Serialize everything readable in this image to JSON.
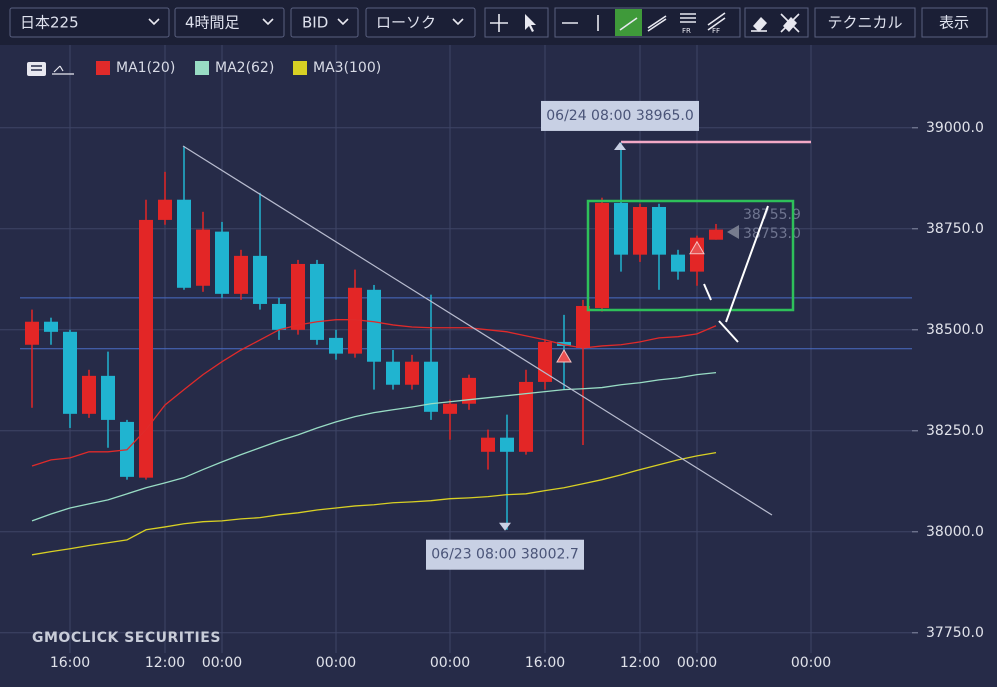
{
  "toolbar": {
    "symbol": "日本225",
    "timeframe": "4時間足",
    "price_type": "BID",
    "chart_style": "ローソク",
    "buttons": [
      "テクニカル",
      "表示"
    ]
  },
  "chart_data": {
    "type": "candlestick",
    "watermark": "GMOCLICK SECURITIES",
    "categories": [
      null,
      null,
      "16:00",
      null,
      null,
      null,
      null,
      "12:00",
      null,
      null,
      "00:00",
      null,
      null,
      null,
      null,
      null,
      "00:00",
      null,
      null,
      null,
      null,
      null,
      "00:00",
      null,
      null,
      null,
      null,
      "16:00",
      null,
      null,
      null,
      null,
      "12:00",
      null,
      null,
      "00:00",
      null,
      null,
      null,
      null,
      null,
      "00:00"
    ],
    "open": [
      38463,
      38520,
      38495,
      38292,
      38386,
      38272,
      38134,
      38772,
      38822,
      38609,
      38743,
      38589,
      38683,
      38564,
      38500,
      38663,
      38480,
      38441,
      38599,
      38421,
      38364,
      38421,
      38292,
      38317,
      38198,
      38233,
      38198,
      38371,
      38470,
      38455,
      38554,
      38814,
      38686,
      38804,
      38686,
      38644,
      38723,
      null,
      null,
      null,
      null,
      null
    ],
    "high": [
      38550,
      38530,
      38500,
      38401,
      38446,
      38277,
      38822,
      38891,
      38955,
      38792,
      38767,
      38698,
      38839,
      38579,
      38673,
      38673,
      38500,
      38649,
      38611,
      38450,
      38438,
      38587,
      38327,
      38389,
      38253,
      38290,
      38401,
      38475,
      38537,
      38574,
      38827,
      38963,
      38812,
      38812,
      38698,
      38733,
      38762,
      null,
      null,
      null,
      null,
      null
    ],
    "low": [
      38307,
      38463,
      38257,
      38282,
      38208,
      38129,
      38129,
      38760,
      38599,
      38594,
      38579,
      38574,
      38550,
      38475,
      38488,
      38463,
      38426,
      38431,
      38352,
      38352,
      38352,
      38277,
      38228,
      38302,
      38154,
      38005,
      38191,
      38352,
      38352,
      38215,
      38545,
      38644,
      38668,
      38599,
      38624,
      38609,
      38723,
      null,
      null,
      null,
      null,
      null
    ],
    "close": [
      38520,
      38495,
      38292,
      38386,
      38277,
      38136,
      38772,
      38822,
      38604,
      38748,
      38589,
      38683,
      38564,
      38500,
      38663,
      38475,
      38441,
      38604,
      38421,
      38364,
      38421,
      38297,
      38317,
      38381,
      38233,
      38198,
      38371,
      38470,
      38460,
      38559,
      38814,
      38686,
      38804,
      38686,
      38644,
      38728,
      38748,
      null,
      null,
      null,
      null,
      null
    ],
    "up_color": "#e32626",
    "down_color": "#20b4d0",
    "series": [
      {
        "name": "MA1(20)",
        "color": "#e02a2a",
        "values": [
          38163,
          38178,
          38183,
          38198,
          38198,
          38203,
          38253,
          38314,
          38352,
          38389,
          38421,
          38450,
          38475,
          38500,
          38512,
          38520,
          38525,
          38525,
          38520,
          38512,
          38507,
          38505,
          38505,
          38505,
          38500,
          38495,
          38485,
          38475,
          38463,
          38455,
          38460,
          38463,
          38470,
          38480,
          38483,
          38490,
          38510,
          null,
          null,
          null,
          null,
          null
        ]
      },
      {
        "name": "MA2(62)",
        "color": "#98dcc4",
        "values": [
          38027,
          38044,
          38059,
          38069,
          38079,
          38094,
          38109,
          38121,
          38134,
          38154,
          38173,
          38191,
          38208,
          38225,
          38240,
          38257,
          38272,
          38285,
          38295,
          38302,
          38309,
          38317,
          38322,
          38327,
          38332,
          38337,
          38342,
          38347,
          38352,
          38354,
          38357,
          38364,
          38369,
          38376,
          38381,
          38389,
          38394,
          null,
          null,
          null,
          null,
          null
        ]
      },
      {
        "name": "MA3(100)",
        "color": "#d8d024",
        "values": [
          37943,
          37951,
          37958,
          37966,
          37973,
          37980,
          38005,
          38012,
          38020,
          38025,
          38027,
          38032,
          38035,
          38042,
          38047,
          38054,
          38059,
          38064,
          38067,
          38072,
          38074,
          38077,
          38082,
          38084,
          38087,
          38092,
          38094,
          38102,
          38109,
          38119,
          38129,
          38141,
          38154,
          38166,
          38178,
          38188,
          38196,
          null,
          null,
          null,
          null,
          null
        ]
      }
    ],
    "ylim": [
      37700,
      39200
    ],
    "yticks": [
      {
        "value": 37750,
        "label": "37750.0"
      },
      {
        "value": 38000,
        "label": "38000.0"
      },
      {
        "value": 38250,
        "label": "38250.0"
      },
      {
        "value": 38500,
        "label": "38500.0"
      },
      {
        "value": 38750,
        "label": "38750.0"
      },
      {
        "value": 39000,
        "label": "39000.0"
      }
    ],
    "grid": true,
    "horizontal_lines": [
      {
        "value": 38579,
        "color": "#4a6cc4"
      },
      {
        "value": 38453,
        "color": "#4a6cc4"
      },
      {
        "value": 38965,
        "color": "#f2a9c6"
      }
    ],
    "annotations": [
      {
        "label": "06/24 08:00 38965.0",
        "value": 38965.0
      },
      {
        "label": "06/23 08:00 38002.7",
        "value": 38002.7
      }
    ],
    "price_markers": [
      {
        "label": "38755.9",
        "value": 38755.9
      },
      {
        "label": "38753.0",
        "value": 38753.0
      }
    ]
  }
}
